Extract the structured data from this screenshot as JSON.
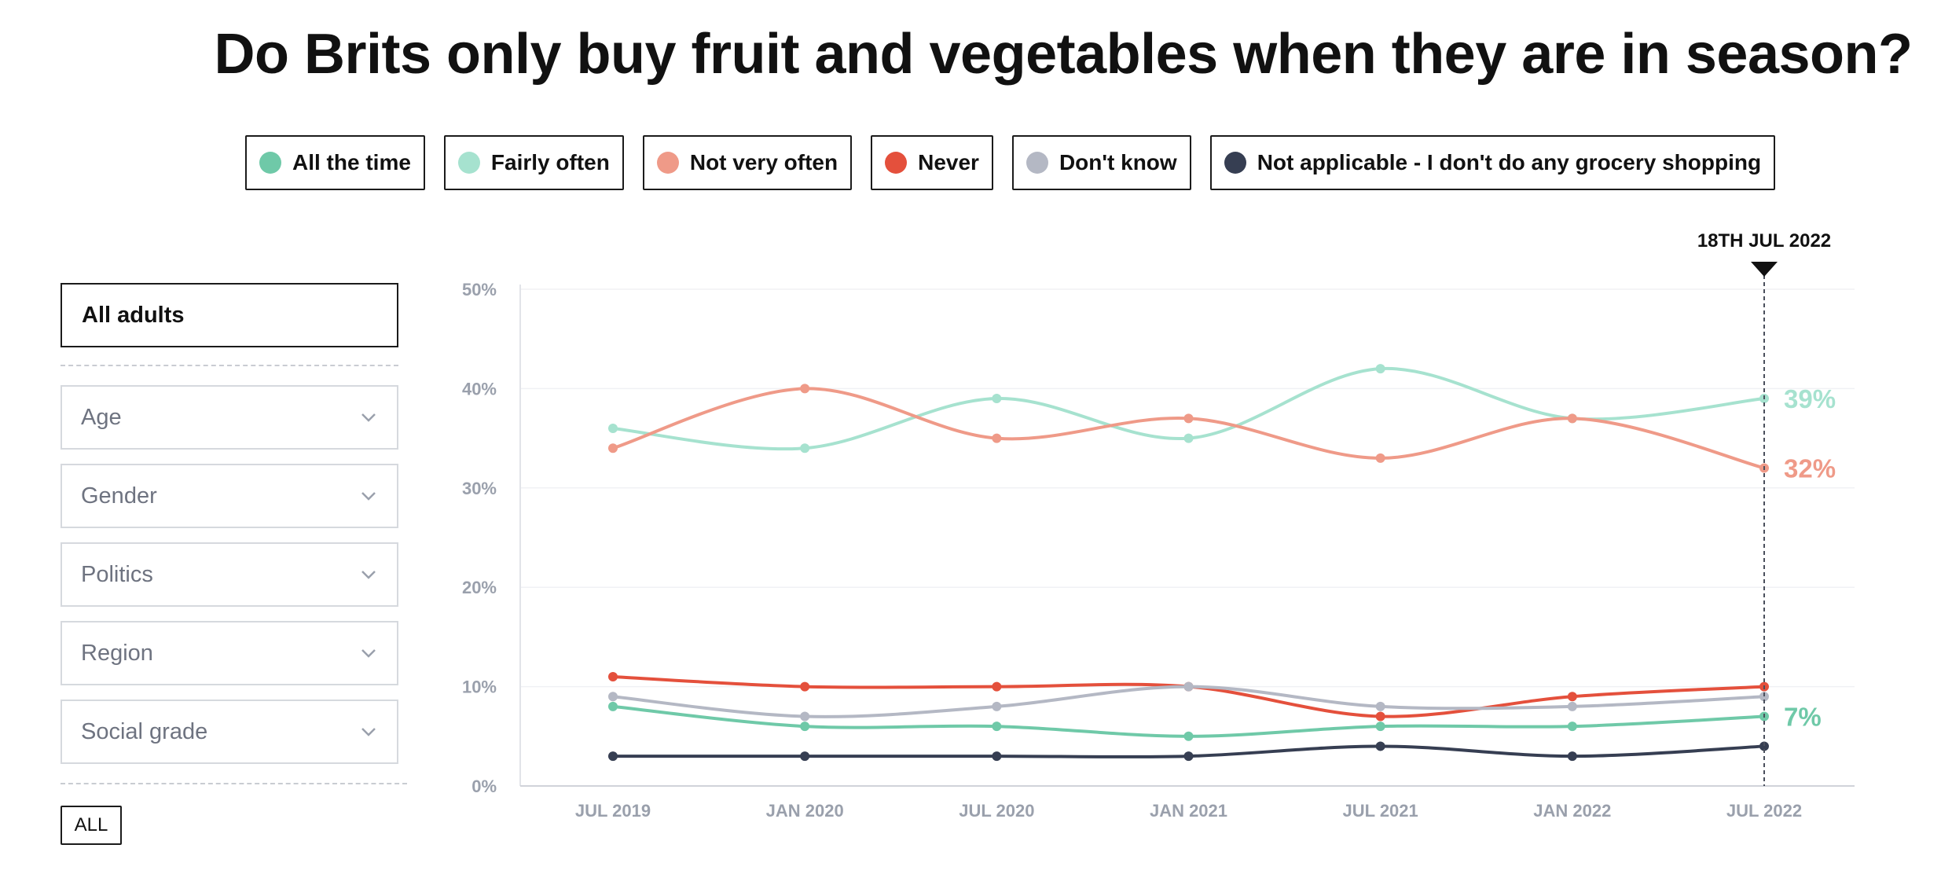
{
  "title": "Do Brits only buy fruit and vegetables when they are in season?",
  "legend": [
    {
      "label": "All the time",
      "color": "#6fc9a8"
    },
    {
      "label": "Fairly often",
      "color": "#a6e2cf"
    },
    {
      "label": "Not very often",
      "color": "#ef9a88"
    },
    {
      "label": "Never",
      "color": "#e4503c"
    },
    {
      "label": "Don't know",
      "color": "#b4b8c4"
    },
    {
      "label": "Not applicable - I don't do any grocery shopping",
      "color": "#363e52"
    }
  ],
  "sidebar": {
    "selected": "All adults",
    "filters": [
      "Age",
      "Gender",
      "Politics",
      "Region",
      "Social grade"
    ],
    "all_button": "ALL"
  },
  "chart_data": {
    "type": "line",
    "title": "Do Brits only buy fruit and vegetables when they are in season?",
    "xlabel": "",
    "ylabel": "",
    "categories": [
      "JUL 2019",
      "JAN 2020",
      "JUL 2020",
      "JAN 2021",
      "JUL 2021",
      "JAN 2022",
      "JUL 2022"
    ],
    "y_ticks": [
      "0%",
      "10%",
      "20%",
      "30%",
      "40%",
      "50%"
    ],
    "ylim": [
      0,
      50
    ],
    "grid": true,
    "marker": {
      "label": "18TH JUL 2022",
      "category": "JUL 2022"
    },
    "series": [
      {
        "name": "Fairly often",
        "color": "#a6e2cf",
        "values": [
          36,
          34,
          39,
          35,
          42,
          37,
          39
        ],
        "end_label": "39%"
      },
      {
        "name": "Not very often",
        "color": "#ef9a88",
        "values": [
          34,
          40,
          35,
          37,
          33,
          37,
          32
        ],
        "end_label": "32%"
      },
      {
        "name": "Never",
        "color": "#e4503c",
        "values": [
          11,
          10,
          10,
          10,
          7,
          9,
          10
        ],
        "end_label": ""
      },
      {
        "name": "Don't know",
        "color": "#b4b8c4",
        "values": [
          9,
          7,
          8,
          10,
          8,
          8,
          9
        ],
        "end_label": ""
      },
      {
        "name": "All the time",
        "color": "#6fc9a8",
        "values": [
          8,
          6,
          6,
          5,
          6,
          6,
          7
        ],
        "end_label": "7%"
      },
      {
        "name": "Not applicable - I don't do any grocery shopping",
        "color": "#363e52",
        "values": [
          3,
          3,
          3,
          3,
          4,
          3,
          4
        ],
        "end_label": ""
      }
    ]
  }
}
